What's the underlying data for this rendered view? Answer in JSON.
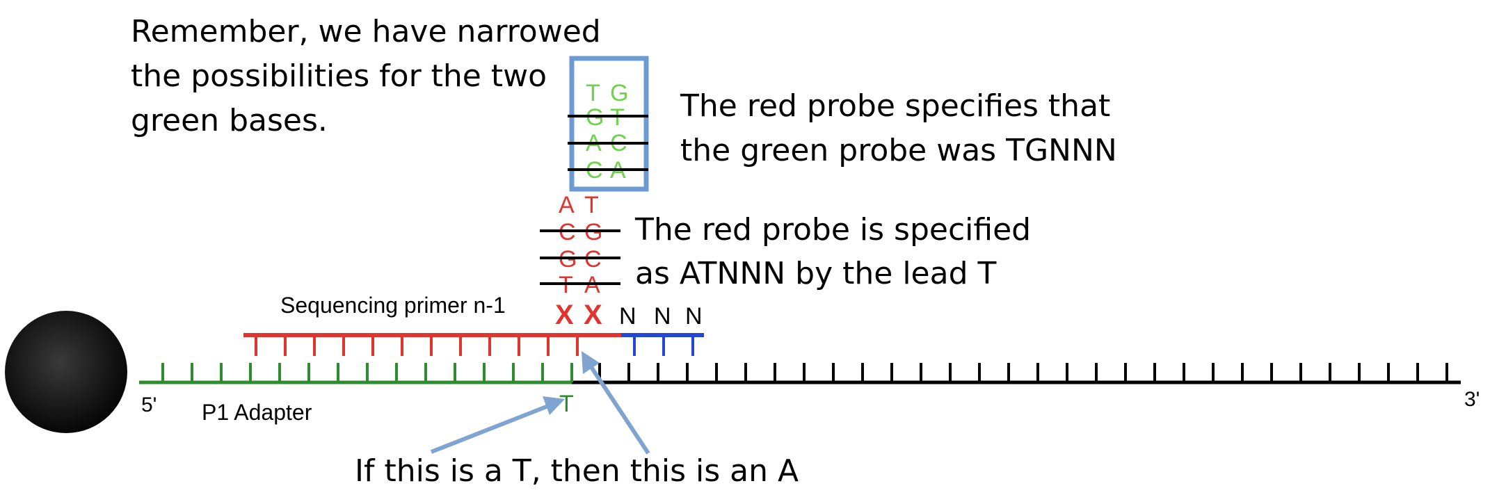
{
  "notes": {
    "top_left": [
      "Remember, we have narrowed",
      "the possibilities for the two",
      "green bases."
    ],
    "green_probe": [
      "The red probe specifies that",
      "the green probe was TGNNN"
    ],
    "red_probe": [
      "The red probe is specified",
      "as ATNNN by the lead T"
    ],
    "bottom": "If this is a T, then this is an A"
  },
  "labels": {
    "primer": "Sequencing primer n-1",
    "adapter": "P1 Adapter",
    "five_prime": "5'",
    "three_prime": "3'",
    "lead_base": "T"
  },
  "green_pairs": [
    [
      "T",
      "G"
    ],
    [
      "G",
      "T"
    ],
    [
      "A",
      "C"
    ],
    [
      "C",
      "A"
    ]
  ],
  "red_pairs": [
    [
      "A",
      "T"
    ],
    [
      "C",
      "G"
    ],
    [
      "G",
      "C"
    ],
    [
      "T",
      "A"
    ]
  ],
  "unknown_marks": [
    "X",
    "X"
  ],
  "unknown_bases": [
    "N",
    "N",
    "N"
  ],
  "colors": {
    "green": "#2e8b2e",
    "green_text": "#6ed24a",
    "red": "#e0342e",
    "blue": "#2247d6",
    "box": "#6b9bd1",
    "arrow": "#7fa4cf",
    "black": "#000000"
  }
}
